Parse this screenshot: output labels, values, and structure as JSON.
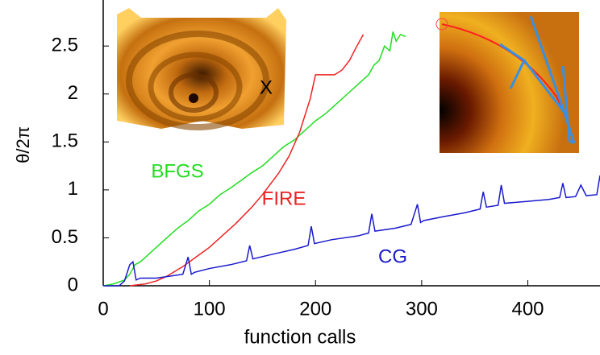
{
  "chart_data": {
    "type": "line",
    "xlabel": "function calls",
    "ylabel": "θ/2π",
    "xlim": [
      0,
      468
    ],
    "ylim": [
      0,
      2.98
    ],
    "xticks": [
      0,
      100,
      200,
      300,
      400
    ],
    "yticks": [
      0,
      0.5,
      1,
      1.5,
      2,
      2.5
    ],
    "inset_label": "X",
    "series": [
      {
        "name": "BFGS",
        "color": "#22dd22",
        "x": [
          0,
          10,
          20,
          25,
          30,
          35,
          40,
          50,
          60,
          70,
          80,
          90,
          100,
          110,
          120,
          130,
          140,
          150,
          160,
          170,
          180,
          190,
          200,
          210,
          220,
          230,
          240,
          250,
          255,
          260,
          265,
          270,
          273,
          276,
          280,
          285
        ],
        "values": [
          0,
          0.02,
          0.06,
          0.12,
          0.22,
          0.25,
          0.3,
          0.4,
          0.5,
          0.6,
          0.68,
          0.78,
          0.85,
          0.95,
          1.02,
          1.1,
          1.18,
          1.25,
          1.35,
          1.45,
          1.52,
          1.62,
          1.72,
          1.8,
          1.9,
          2.0,
          2.1,
          2.2,
          2.3,
          2.35,
          2.5,
          2.45,
          2.65,
          2.55,
          2.62,
          2.6
        ]
      },
      {
        "name": "FIRE",
        "color": "#ee2222",
        "x": [
          25,
          40,
          50,
          60,
          75,
          90,
          100,
          115,
          125,
          140,
          150,
          165,
          175,
          185,
          195,
          200,
          210,
          218,
          225,
          232,
          238,
          245
        ],
        "values": [
          0,
          0.02,
          0.05,
          0.1,
          0.2,
          0.32,
          0.4,
          0.55,
          0.65,
          0.82,
          0.95,
          1.17,
          1.35,
          1.6,
          1.95,
          2.2,
          2.2,
          2.2,
          2.25,
          2.35,
          2.48,
          2.62
        ]
      },
      {
        "name": "CG",
        "color": "#1a1acc",
        "x": [
          0,
          15,
          20,
          25,
          28,
          31,
          35,
          50,
          75,
          80,
          83,
          86,
          100,
          120,
          135,
          138,
          141,
          160,
          180,
          193,
          196,
          199,
          215,
          240,
          250,
          253,
          256,
          275,
          290,
          296,
          299,
          302,
          320,
          340,
          355,
          358,
          361,
          372,
          375,
          378,
          400,
          420,
          430,
          433,
          436,
          445,
          450,
          455,
          465,
          468
        ],
        "values": [
          0,
          0,
          0.05,
          0.22,
          0.25,
          0.06,
          0.08,
          0.08,
          0.12,
          0.3,
          0.12,
          0.14,
          0.18,
          0.22,
          0.26,
          0.42,
          0.28,
          0.33,
          0.38,
          0.42,
          0.62,
          0.44,
          0.48,
          0.52,
          0.55,
          0.75,
          0.57,
          0.6,
          0.64,
          0.85,
          0.66,
          0.68,
          0.72,
          0.76,
          0.8,
          0.98,
          0.82,
          0.84,
          1.05,
          0.86,
          0.88,
          0.9,
          0.92,
          1.07,
          0.92,
          0.93,
          1.05,
          0.94,
          0.95,
          1.15
        ]
      }
    ],
    "grid": false
  }
}
